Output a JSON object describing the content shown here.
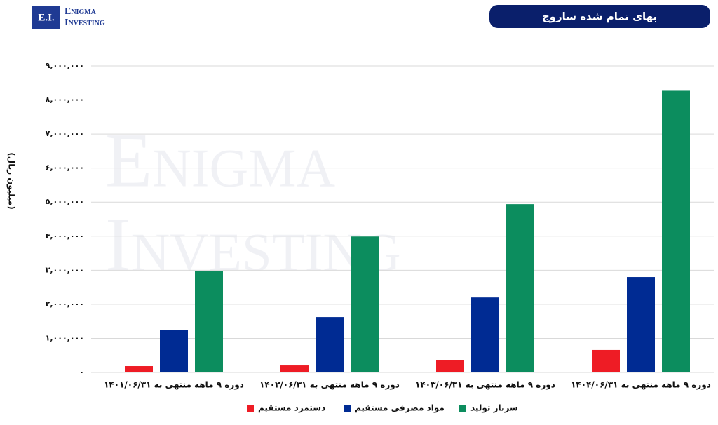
{
  "brand": {
    "initials": "E.I.",
    "line1": "Enigma",
    "line2": "Investing"
  },
  "chart_data": {
    "type": "bar",
    "title": "بهای تمام شده ساروج",
    "y_label": "(میلیون ریال)",
    "categories": [
      "دوره ۹ ماهه منتهی به ۱۴۰۱/۰۶/۳۱",
      "دوره ۹ ماهه منتهی به ۱۴۰۲/۰۶/۳۱",
      "دوره ۹ ماهه منتهی به ۱۴۰۳/۰۶/۳۱",
      "دوره ۹ ماهه منتهی به ۱۴۰۴/۰۶/۳۱"
    ],
    "series": [
      {
        "name": "دستمزد مستقیم",
        "color": "#ee1c25",
        "values": [
          185000,
          205000,
          370000,
          660000
        ]
      },
      {
        "name": "مواد مصرفی مستقیم",
        "color": "#002b93",
        "values": [
          1255000,
          1625000,
          2200000,
          2800000
        ]
      },
      {
        "name": "سربار تولید",
        "color": "#0c8d5e",
        "values": [
          2985000,
          3990000,
          4940000,
          8270000
        ]
      }
    ],
    "ylim": [
      0,
      9000000
    ],
    "yticks": [
      {
        "value": 0,
        "label": "۰"
      },
      {
        "value": 1000000,
        "label": "۱,۰۰۰,۰۰۰"
      },
      {
        "value": 2000000,
        "label": "۲,۰۰۰,۰۰۰"
      },
      {
        "value": 3000000,
        "label": "۳,۰۰۰,۰۰۰"
      },
      {
        "value": 4000000,
        "label": "۴,۰۰۰,۰۰۰"
      },
      {
        "value": 5000000,
        "label": "۵,۰۰۰,۰۰۰"
      },
      {
        "value": 6000000,
        "label": "۶,۰۰۰,۰۰۰"
      },
      {
        "value": 7000000,
        "label": "۷,۰۰۰,۰۰۰"
      },
      {
        "value": 8000000,
        "label": "۸,۰۰۰,۰۰۰"
      },
      {
        "value": 9000000,
        "label": "۹,۰۰۰,۰۰۰"
      }
    ],
    "grid": true
  }
}
